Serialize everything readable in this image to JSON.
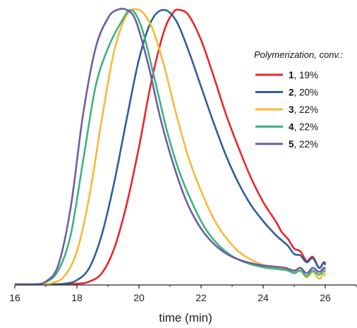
{
  "chart_data": {
    "type": "line",
    "xlabel": "time (min)",
    "ylabel": "",
    "xlim": [
      16,
      27
    ],
    "ylim": [
      0,
      1
    ],
    "x_ticks": [
      "16",
      "18",
      "20",
      "22",
      "24",
      "26"
    ],
    "grid": false,
    "legend": {
      "title": "Polymerization, conv.:",
      "placement": "top-right"
    },
    "series": [
      {
        "name": "1",
        "label_value": ", 19%",
        "color": "#E8272C",
        "points": [
          [
            16.0,
            0.0
          ],
          [
            17.0,
            0.0
          ],
          [
            18.0,
            0.002
          ],
          [
            18.4,
            0.01
          ],
          [
            18.8,
            0.04
          ],
          [
            19.2,
            0.13
          ],
          [
            19.6,
            0.29
          ],
          [
            20.0,
            0.5
          ],
          [
            20.4,
            0.74
          ],
          [
            20.8,
            0.92
          ],
          [
            21.1,
            0.99
          ],
          [
            21.3,
            1.0
          ],
          [
            21.6,
            0.98
          ],
          [
            22.0,
            0.89
          ],
          [
            22.4,
            0.76
          ],
          [
            22.8,
            0.62
          ],
          [
            23.2,
            0.5
          ],
          [
            23.6,
            0.39
          ],
          [
            24.0,
            0.3
          ],
          [
            24.4,
            0.23
          ],
          [
            24.6,
            0.19
          ],
          [
            24.8,
            0.165
          ],
          [
            25.0,
            0.13
          ],
          [
            25.2,
            0.12
          ],
          [
            25.4,
            0.085
          ],
          [
            25.6,
            0.1
          ],
          [
            25.8,
            0.06
          ],
          [
            25.95,
            0.08
          ],
          [
            26.0,
            0.075
          ]
        ]
      },
      {
        "name": "2",
        "label_value": ", 20%",
        "color": "#2F5E9C",
        "points": [
          [
            16.0,
            0.0
          ],
          [
            17.0,
            0.0
          ],
          [
            17.6,
            0.002
          ],
          [
            18.0,
            0.015
          ],
          [
            18.4,
            0.06
          ],
          [
            18.8,
            0.18
          ],
          [
            19.2,
            0.37
          ],
          [
            19.6,
            0.6
          ],
          [
            20.0,
            0.82
          ],
          [
            20.4,
            0.96
          ],
          [
            20.8,
            1.0
          ],
          [
            21.2,
            0.96
          ],
          [
            21.6,
            0.85
          ],
          [
            22.0,
            0.72
          ],
          [
            22.4,
            0.59
          ],
          [
            22.8,
            0.47
          ],
          [
            23.2,
            0.37
          ],
          [
            23.6,
            0.29
          ],
          [
            24.0,
            0.23
          ],
          [
            24.4,
            0.18
          ],
          [
            24.6,
            0.16
          ],
          [
            24.8,
            0.14
          ],
          [
            25.0,
            0.11
          ],
          [
            25.2,
            0.105
          ],
          [
            25.4,
            0.08
          ],
          [
            25.6,
            0.095
          ],
          [
            25.8,
            0.06
          ],
          [
            25.95,
            0.08
          ],
          [
            26.0,
            0.07
          ]
        ]
      },
      {
        "name": "3",
        "label_value": ", 22%",
        "color": "#F8B935",
        "points": [
          [
            16.0,
            0.0
          ],
          [
            16.8,
            0.0
          ],
          [
            17.2,
            0.005
          ],
          [
            17.6,
            0.03
          ],
          [
            18.0,
            0.12
          ],
          [
            18.4,
            0.32
          ],
          [
            18.8,
            0.6
          ],
          [
            19.2,
            0.85
          ],
          [
            19.6,
            0.98
          ],
          [
            20.0,
            1.0
          ],
          [
            20.4,
            0.94
          ],
          [
            20.8,
            0.8
          ],
          [
            21.2,
            0.62
          ],
          [
            21.6,
            0.46
          ],
          [
            22.0,
            0.34
          ],
          [
            22.4,
            0.24
          ],
          [
            22.8,
            0.17
          ],
          [
            23.2,
            0.12
          ],
          [
            23.6,
            0.09
          ],
          [
            24.0,
            0.07
          ],
          [
            24.4,
            0.06
          ],
          [
            24.8,
            0.055
          ],
          [
            25.0,
            0.045
          ],
          [
            25.2,
            0.05
          ],
          [
            25.4,
            0.025
          ],
          [
            25.6,
            0.045
          ],
          [
            25.8,
            0.02
          ],
          [
            25.95,
            0.04
          ],
          [
            26.0,
            0.03
          ]
        ]
      },
      {
        "name": "4",
        "label_value": ", 22%",
        "color": "#3DB37E",
        "points": [
          [
            16.0,
            0.0
          ],
          [
            16.6,
            0.0
          ],
          [
            17.0,
            0.008
          ],
          [
            17.4,
            0.05
          ],
          [
            17.8,
            0.18
          ],
          [
            18.2,
            0.45
          ],
          [
            18.6,
            0.72
          ],
          [
            19.0,
            0.86
          ],
          [
            19.4,
            0.95
          ],
          [
            19.75,
            1.0
          ],
          [
            20.1,
            0.93
          ],
          [
            20.5,
            0.75
          ],
          [
            20.9,
            0.56
          ],
          [
            21.3,
            0.41
          ],
          [
            21.7,
            0.3
          ],
          [
            22.1,
            0.21
          ],
          [
            22.5,
            0.15
          ],
          [
            22.9,
            0.11
          ],
          [
            23.3,
            0.085
          ],
          [
            23.7,
            0.07
          ],
          [
            24.1,
            0.06
          ],
          [
            24.5,
            0.055
          ],
          [
            24.8,
            0.05
          ],
          [
            25.0,
            0.04
          ],
          [
            25.2,
            0.05
          ],
          [
            25.4,
            0.03
          ],
          [
            25.6,
            0.05
          ],
          [
            25.8,
            0.035
          ],
          [
            25.95,
            0.05
          ],
          [
            26.0,
            0.045
          ]
        ]
      },
      {
        "name": "5",
        "label_value": ", 22%",
        "color": "#6B5FA5",
        "points": [
          [
            16.0,
            0.0
          ],
          [
            16.6,
            0.0
          ],
          [
            17.0,
            0.01
          ],
          [
            17.4,
            0.07
          ],
          [
            17.8,
            0.28
          ],
          [
            18.2,
            0.62
          ],
          [
            18.6,
            0.86
          ],
          [
            19.0,
            0.97
          ],
          [
            19.3,
            1.0
          ],
          [
            19.6,
            1.0
          ],
          [
            19.9,
            0.96
          ],
          [
            20.3,
            0.8
          ],
          [
            20.7,
            0.6
          ],
          [
            21.1,
            0.44
          ],
          [
            21.5,
            0.31
          ],
          [
            21.9,
            0.22
          ],
          [
            22.3,
            0.16
          ],
          [
            22.7,
            0.12
          ],
          [
            23.1,
            0.095
          ],
          [
            23.5,
            0.08
          ],
          [
            23.9,
            0.07
          ],
          [
            24.3,
            0.065
          ],
          [
            24.7,
            0.06
          ],
          [
            25.0,
            0.05
          ],
          [
            25.2,
            0.06
          ],
          [
            25.4,
            0.04
          ],
          [
            25.6,
            0.06
          ],
          [
            25.8,
            0.045
          ],
          [
            25.95,
            0.06
          ],
          [
            26.0,
            0.055
          ]
        ]
      }
    ]
  }
}
